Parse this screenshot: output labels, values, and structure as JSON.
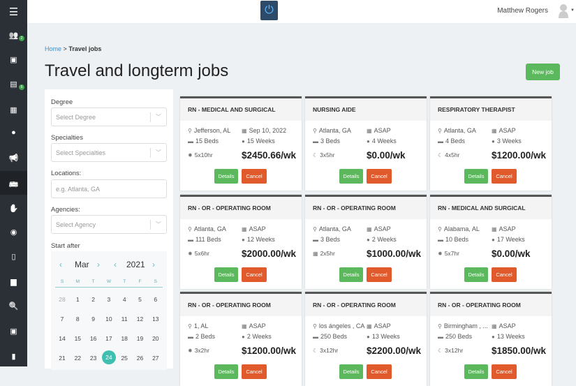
{
  "header": {
    "user_name": "Matthew Rogers"
  },
  "sidebar": {
    "items": [
      {
        "icon": "menu-icon"
      },
      {
        "icon": "users-icon",
        "badge": "2"
      },
      {
        "icon": "money-icon"
      },
      {
        "icon": "tasks-icon",
        "badge": "6"
      },
      {
        "icon": "calendar-icon"
      },
      {
        "icon": "clock-icon"
      },
      {
        "icon": "megaphone-icon"
      },
      {
        "icon": "bus-icon",
        "active": true
      },
      {
        "icon": "hand-icon"
      },
      {
        "icon": "user-circle-icon"
      },
      {
        "icon": "building-icon"
      },
      {
        "icon": "briefcase-icon"
      },
      {
        "icon": "search-icon"
      },
      {
        "icon": "id-card-icon"
      },
      {
        "icon": "document-icon"
      }
    ]
  },
  "breadcrumb": {
    "home": "Home",
    "sep": ">",
    "current": "Travel jobs"
  },
  "page_title": "Travel and longterm jobs",
  "new_job_label": "New job",
  "filters": {
    "degree": {
      "label": "Degree",
      "placeholder": "Select Degree"
    },
    "specialties": {
      "label": "Specialties",
      "placeholder": "Select Specialties"
    },
    "locations": {
      "label": "Locations:",
      "placeholder": "e.g. Atlanta, GA"
    },
    "agencies": {
      "label": "Agencies:",
      "placeholder": "Select Agency"
    },
    "start_after": {
      "label": "Start after",
      "month": "Mar",
      "year": "2021",
      "weekdays": [
        "S",
        "M",
        "T",
        "W",
        "T",
        "F",
        "S"
      ],
      "days": [
        [
          "28",
          "1",
          "2",
          "3",
          "4",
          "5",
          "6"
        ],
        [
          "7",
          "8",
          "9",
          "10",
          "11",
          "12",
          "13"
        ],
        [
          "14",
          "15",
          "16",
          "17",
          "18",
          "19",
          "20"
        ],
        [
          "21",
          "22",
          "23",
          "24",
          "25",
          "26",
          "27"
        ]
      ],
      "selected": "24"
    }
  },
  "jobs": [
    {
      "title": "RN - MEDICAL AND SURGICAL",
      "location": "Jefferson, AL",
      "start": "Sep 10, 2022",
      "beds": "15 Beds",
      "duration": "15 Weeks",
      "shift": "5x10hr",
      "shift_icon": "sun",
      "pay": "$2450.66/wk"
    },
    {
      "title": "NURSING AIDE",
      "location": "Atlanta, GA",
      "start": "ASAP",
      "beds": "3 Beds",
      "duration": "4 Weeks",
      "shift": "3x5hr",
      "shift_icon": "moon",
      "pay": "$0.00/wk"
    },
    {
      "title": "RESPIRATORY THERAPIST",
      "location": "Atlanta, GA",
      "start": "ASAP",
      "beds": "4 Beds",
      "duration": "3 Weeks",
      "shift": "4x5hr",
      "shift_icon": "moon",
      "pay": "$1200.00/wk"
    },
    {
      "title": "RN - OR - OPERATING ROOM",
      "location": "Atlanta, GA",
      "start": "ASAP",
      "beds": "111 Beds",
      "duration": "12 Weeks",
      "shift": "5x6hr",
      "shift_icon": "sun",
      "pay": "$2000.00/wk"
    },
    {
      "title": "RN - OR - OPERATING ROOM",
      "location": "Atlanta, GA",
      "start": "ASAP",
      "beds": "3 Beds",
      "duration": "2 Weeks",
      "shift": "2x5hr",
      "shift_icon": "calendar",
      "pay": "$1000.00/wk"
    },
    {
      "title": "RN - MEDICAL AND SURGICAL",
      "location": "Alabama, AL",
      "start": "ASAP",
      "beds": "10 Beds",
      "duration": "17 Weeks",
      "shift": "5x7hr",
      "shift_icon": "sun",
      "pay": "$0.00/wk"
    },
    {
      "title": "RN - OR - OPERATING ROOM",
      "location": "1, AL",
      "start": "ASAP",
      "beds": "2 Beds",
      "duration": "2 Weeks",
      "shift": "3x2hr",
      "shift_icon": "sun",
      "pay": "$1200.00/wk"
    },
    {
      "title": "RN - OR - OPERATING ROOM",
      "location": "los ángeles , CA",
      "start": "ASAP",
      "beds": "250 Beds",
      "duration": "13 Weeks",
      "shift": "3x12hr",
      "shift_icon": "moon",
      "pay": "$2200.00/wk"
    },
    {
      "title": "RN - OR - OPERATING ROOM",
      "location": "Birmingham , ...",
      "start": "ASAP",
      "beds": "250 Beds",
      "duration": "13 Weeks",
      "shift": "3x12hr",
      "shift_icon": "moon",
      "pay": "$1850.00/wk"
    }
  ],
  "card_buttons": {
    "details": "Details",
    "cancel": "Cancel"
  },
  "colors": {
    "sidebar": "#2b3037",
    "success": "#5cb85c",
    "danger": "#e05a2b",
    "accent": "#3fbfb0"
  }
}
